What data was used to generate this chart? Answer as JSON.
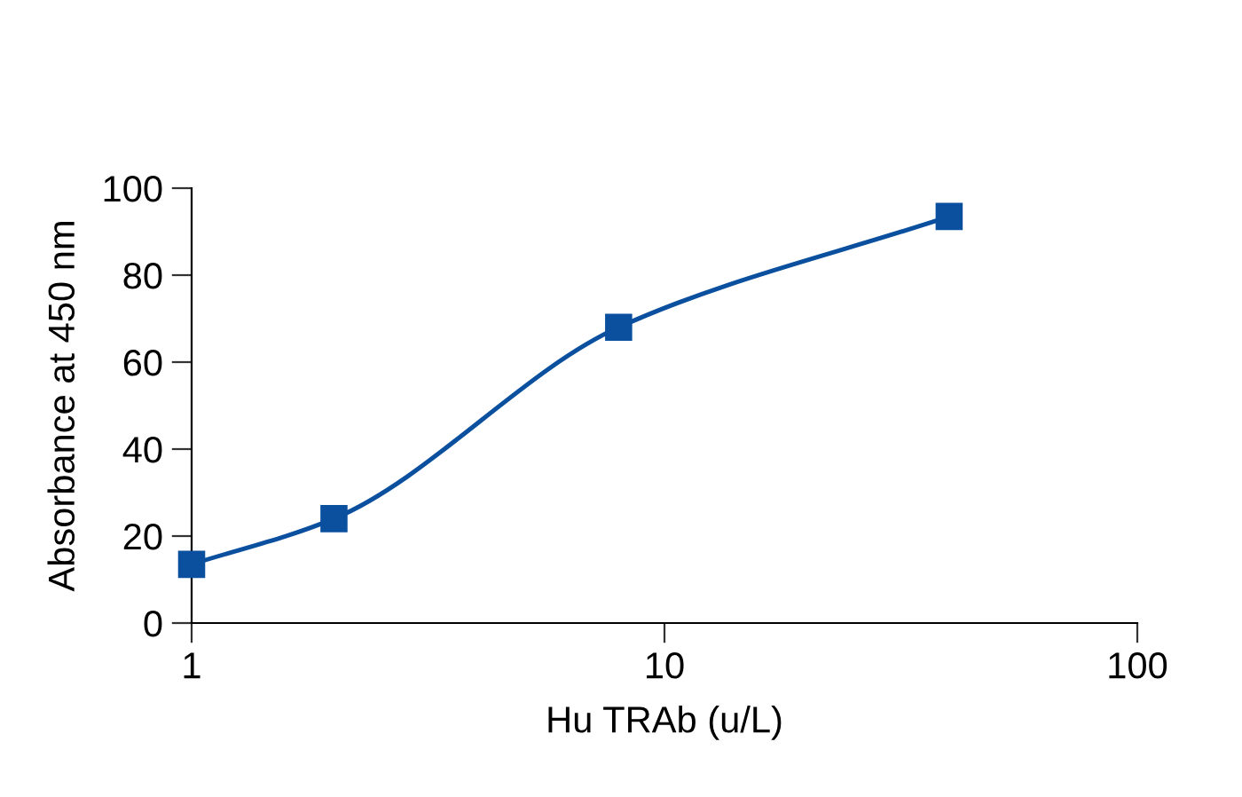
{
  "chart_data": {
    "type": "line",
    "xlabel": "Hu TRAb (u/L)",
    "ylabel": "Absorbance at 450 nm",
    "log": "x",
    "x": [
      1,
      2,
      8,
      40
    ],
    "series": [
      {
        "color": "#0b4f9f",
        "values": [
          13.5,
          24,
          68,
          93.5
        ]
      }
    ],
    "xlim": [
      1,
      100
    ],
    "xticks": [
      1,
      10,
      100
    ],
    "ylim": [
      0,
      100
    ],
    "yticks": [
      0,
      20,
      40,
      60,
      80,
      100
    ],
    "marker": "square",
    "line_style": "solid",
    "grid": false
  }
}
